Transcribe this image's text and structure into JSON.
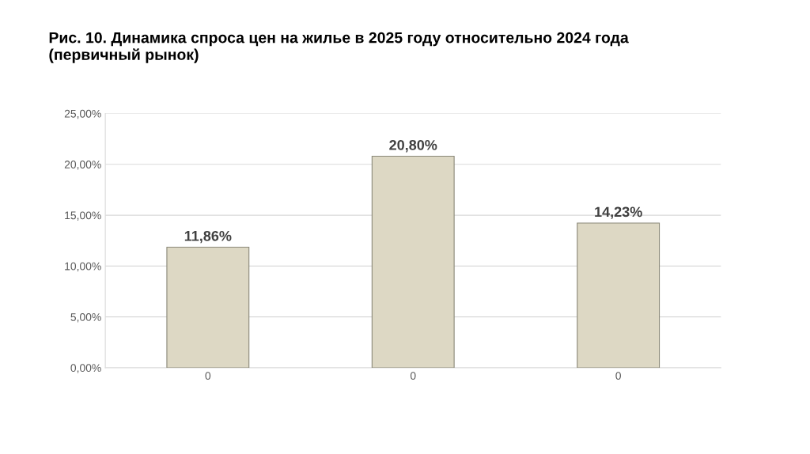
{
  "chart_data": {
    "type": "bar",
    "title": "Рис. 10. Динамика спроса цен на жилье в 2025 году относительно 2024 года\n(первичный рынок)",
    "categories": [
      "0",
      "0",
      "0"
    ],
    "values": [
      11.86,
      20.8,
      14.23
    ],
    "value_labels": [
      "11,86%",
      "20,80%",
      "14,23%"
    ],
    "color": "#ddd8c4",
    "ylim": [
      0,
      25
    ],
    "yticks": [
      {
        "value": 0,
        "label": "0,00%"
      },
      {
        "value": 5,
        "label": "5,00%"
      },
      {
        "value": 10,
        "label": "10,00%"
      },
      {
        "value": 15,
        "label": "15,00%"
      },
      {
        "value": 20,
        "label": "20,00%"
      },
      {
        "value": 25,
        "label": "25,00%"
      }
    ],
    "grid": "y"
  }
}
